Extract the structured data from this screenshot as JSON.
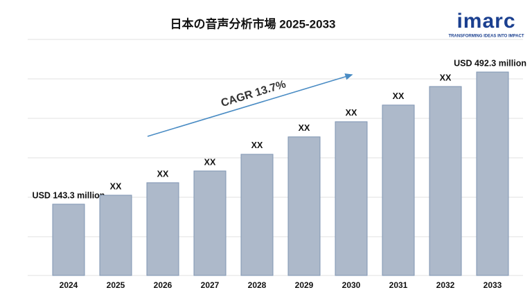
{
  "chart_data": {
    "type": "bar",
    "title": "日本の音声分析市場 2025-2033",
    "categories": [
      "2024",
      "2025",
      "2026",
      "2027",
      "2028",
      "2029",
      "2030",
      "2031",
      "2032",
      "2033"
    ],
    "values": [
      143.3,
      167,
      200,
      231,
      275,
      321,
      361,
      405,
      454,
      492.3
    ],
    "value_labels": [
      "USD 143.3 million",
      "XX",
      "XX",
      "XX",
      "XX",
      "XX",
      "XX",
      "XX",
      "XX",
      "USD 492.3 million"
    ],
    "color": "#adb9ca",
    "ylim": [
      -45,
      560
    ],
    "annotation": "CAGR 13.7%"
  },
  "logo": {
    "name": "imarc",
    "tagline": "TRANSFORMING IDEAS INTO IMPACT"
  }
}
